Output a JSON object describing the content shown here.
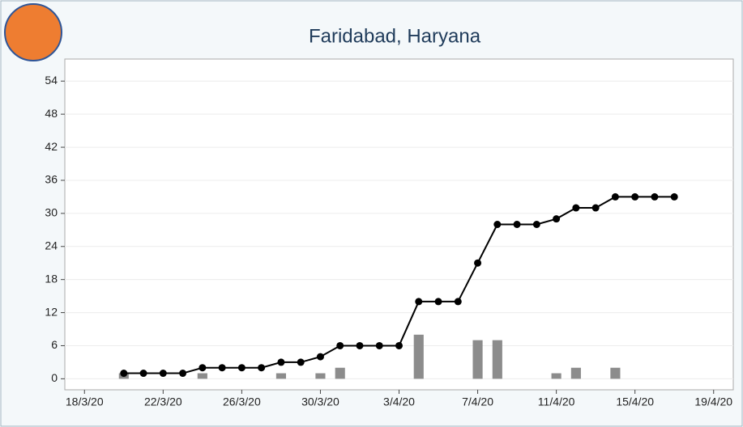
{
  "chart_data": {
    "type": "line",
    "title": "Faridabad, Haryana",
    "x": [
      "2020-03-20",
      "2020-03-21",
      "2020-03-22",
      "2020-03-23",
      "2020-03-24",
      "2020-03-25",
      "2020-03-26",
      "2020-03-27",
      "2020-03-28",
      "2020-03-29",
      "2020-03-30",
      "2020-03-31",
      "2020-04-01",
      "2020-04-02",
      "2020-04-03",
      "2020-04-04",
      "2020-04-05",
      "2020-04-06",
      "2020-04-07",
      "2020-04-08",
      "2020-04-09",
      "2020-04-10",
      "2020-04-11",
      "2020-04-12",
      "2020-04-13",
      "2020-04-14",
      "2020-04-15",
      "2020-04-16",
      "2020-04-17"
    ],
    "series": [
      {
        "type": "bar",
        "color": "#8c8c8c",
        "values": [
          1,
          null,
          null,
          null,
          1,
          null,
          null,
          null,
          1,
          null,
          1,
          2,
          null,
          null,
          null,
          8,
          null,
          null,
          7,
          7,
          null,
          null,
          1,
          2,
          null,
          2,
          null,
          null,
          null
        ]
      },
      {
        "type": "line",
        "color": "#000000",
        "values": [
          1,
          1,
          1,
          1,
          2,
          2,
          2,
          2,
          3,
          3,
          4,
          6,
          6,
          6,
          6,
          14,
          14,
          14,
          21,
          28,
          28,
          28,
          29,
          31,
          31,
          33,
          33,
          33,
          33
        ]
      }
    ],
    "xlim": [
      "2020-03-17",
      "2020-04-20"
    ],
    "xticks": [
      {
        "value": "2020-03-18",
        "label": "18/3/20"
      },
      {
        "value": "2020-03-22",
        "label": "22/3/20"
      },
      {
        "value": "2020-03-26",
        "label": "26/3/20"
      },
      {
        "value": "2020-03-30",
        "label": "30/3/20"
      },
      {
        "value": "2020-04-03",
        "label": "3/4/20"
      },
      {
        "value": "2020-04-07",
        "label": "7/4/20"
      },
      {
        "value": "2020-04-11",
        "label": "11/4/20"
      },
      {
        "value": "2020-04-15",
        "label": "15/4/20"
      },
      {
        "value": "2020-04-19",
        "label": "19/4/20"
      }
    ],
    "ylim": [
      -2,
      58
    ],
    "yticks": [
      0,
      6,
      12,
      18,
      24,
      30,
      36,
      42,
      48,
      54
    ],
    "grid": true
  }
}
